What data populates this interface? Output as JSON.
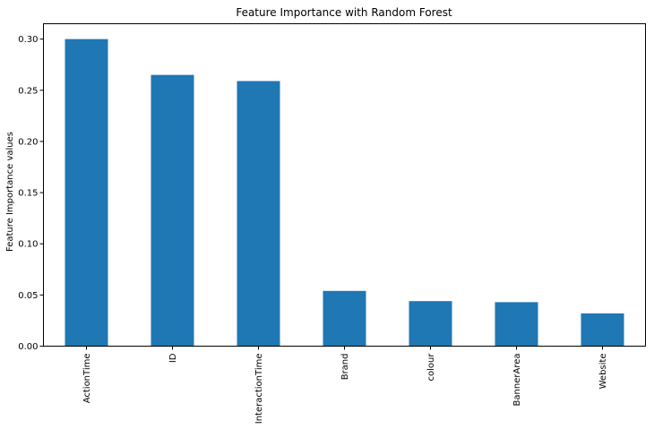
{
  "chart_data": {
    "type": "bar",
    "title": "Feature Importance with Random Forest",
    "xlabel": "",
    "ylabel": "Feature Importance values",
    "categories": [
      "ActionTime",
      "ID",
      "InteractionTime",
      "Brand",
      "colour",
      "BannerArea",
      "Website"
    ],
    "values": [
      0.3,
      0.265,
      0.259,
      0.054,
      0.044,
      0.043,
      0.032
    ],
    "ylim": [
      0,
      0.315
    ],
    "yticks": [
      0.0,
      0.05,
      0.1,
      0.15,
      0.2,
      0.25,
      0.3
    ],
    "ytick_labels": [
      "0.00",
      "0.05",
      "0.10",
      "0.15",
      "0.20",
      "0.25",
      "0.30"
    ],
    "grid": false,
    "legend": "none",
    "bar_color": "#1f77b4"
  }
}
